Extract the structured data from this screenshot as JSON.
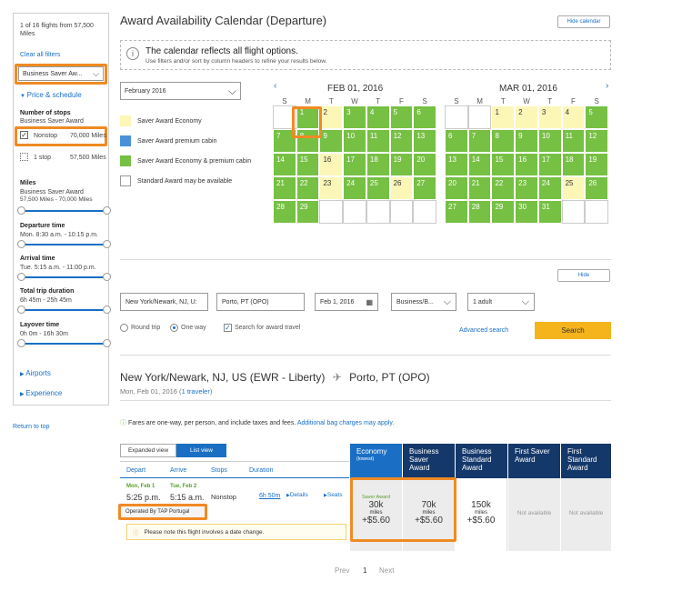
{
  "sidebar": {
    "count_text": "1 of 16 flights from 57,500 Miles",
    "clear": "Clear all filters",
    "fare_select": "Business Saver Aw...",
    "price_schedule": "Price & schedule",
    "stops_label": "Number of stops",
    "stops_sub": "Business Saver Award",
    "nonstop": "Nonstop",
    "nonstop_miles": "70,000 Miles",
    "one_stop": "1 stop",
    "one_stop_miles": "57,500 Miles",
    "miles_label": "Miles",
    "miles_sub": "Business Saver Award",
    "miles_range": "57,500 Miles - 70,000 Miles",
    "dep_label": "Departure time",
    "dep_range": "Mon. 8:30 a.m. - 10:15 p.m.",
    "arr_label": "Arrival time",
    "arr_range": "Tue. 5:15 a.m. - 11:00 p.m.",
    "dur_label": "Total trip duration",
    "dur_range": "6h 45m - 25h 45m",
    "lay_label": "Layover time",
    "lay_range": "0h 0m - 16h 30m",
    "airports": "Airports",
    "experience": "Experience"
  },
  "return_top": "Return to top",
  "calendar": {
    "title": "Award Availability Calendar (Departure)",
    "hide": "Hide calendar",
    "info_title": "The calendar reflects all flight options.",
    "info_sub": "Use filters and/or sort by column headers to refine your results below.",
    "month_select": "February 2016",
    "legend": [
      "Saver Award Economy",
      "Saver Award premium cabin",
      "Saver Award Economy & premium cabin",
      "Standard Award may be available"
    ],
    "legend_colors": [
      "#fdf7b7",
      "#4a90d9",
      "#76c043",
      "#ffffff"
    ],
    "days": [
      "S",
      "M",
      "T",
      "W",
      "T",
      "F",
      "S"
    ],
    "feb": {
      "title": "FEB 01, 2016",
      "weeks": [
        [
          [
            "",
            "e"
          ],
          [
            "1",
            "g"
          ],
          [
            "2",
            "y"
          ],
          [
            "3",
            "g"
          ],
          [
            "4",
            "g"
          ],
          [
            "5",
            "g"
          ],
          [
            "6",
            "g"
          ]
        ],
        [
          [
            "7",
            "g"
          ],
          [
            "8",
            "g"
          ],
          [
            "9",
            "g"
          ],
          [
            "10",
            "g"
          ],
          [
            "11",
            "g"
          ],
          [
            "12",
            "g"
          ],
          [
            "13",
            "g"
          ]
        ],
        [
          [
            "14",
            "g"
          ],
          [
            "15",
            "g"
          ],
          [
            "16",
            "y"
          ],
          [
            "17",
            "g"
          ],
          [
            "18",
            "g"
          ],
          [
            "19",
            "g"
          ],
          [
            "20",
            "g"
          ]
        ],
        [
          [
            "21",
            "g"
          ],
          [
            "22",
            "g"
          ],
          [
            "23",
            "y"
          ],
          [
            "24",
            "g"
          ],
          [
            "25",
            "g"
          ],
          [
            "26",
            "y"
          ],
          [
            "27",
            "g"
          ]
        ],
        [
          [
            "28",
            "g"
          ],
          [
            "29",
            "g"
          ],
          [
            "",
            "e"
          ],
          [
            "",
            "e"
          ],
          [
            "",
            "e"
          ],
          [
            "",
            "e"
          ],
          [
            "",
            "e"
          ]
        ]
      ]
    },
    "mar": {
      "title": "MAR 01, 2016",
      "weeks": [
        [
          [
            "",
            "e"
          ],
          [
            "",
            "e"
          ],
          [
            "1",
            "y"
          ],
          [
            "2",
            "y"
          ],
          [
            "3",
            "y"
          ],
          [
            "4",
            "y"
          ],
          [
            "5",
            "g"
          ]
        ],
        [
          [
            "6",
            "g"
          ],
          [
            "7",
            "g"
          ],
          [
            "8",
            "g"
          ],
          [
            "9",
            "g"
          ],
          [
            "10",
            "g"
          ],
          [
            "11",
            "g"
          ],
          [
            "12",
            "g"
          ]
        ],
        [
          [
            "13",
            "g"
          ],
          [
            "14",
            "g"
          ],
          [
            "15",
            "g"
          ],
          [
            "16",
            "g"
          ],
          [
            "17",
            "g"
          ],
          [
            "18",
            "g"
          ],
          [
            "19",
            "g"
          ]
        ],
        [
          [
            "20",
            "g"
          ],
          [
            "21",
            "g"
          ],
          [
            "22",
            "g"
          ],
          [
            "23",
            "g"
          ],
          [
            "24",
            "g"
          ],
          [
            "25",
            "y"
          ],
          [
            "26",
            "g"
          ]
        ],
        [
          [
            "27",
            "g"
          ],
          [
            "28",
            "g"
          ],
          [
            "29",
            "g"
          ],
          [
            "30",
            "g"
          ],
          [
            "31",
            "g"
          ],
          [
            "",
            "e"
          ],
          [
            "",
            "e"
          ]
        ]
      ]
    }
  },
  "search": {
    "hide": "Hide",
    "from": "New York/Newark, NJ, U:",
    "to": "Porto, PT (OPO)",
    "date": "Feb 1, 2016",
    "cabin": "Business/B...",
    "pax": "1 adult",
    "round": "Round trip",
    "oneway": "One way",
    "award": "Search for award travel",
    "advanced": "Advanced search",
    "search_btn": "Search"
  },
  "results": {
    "route_from": "New York/Newark, NJ, US (EWR - Liberty)",
    "route_to": "Porto, PT (OPO)",
    "date": "Mon, Feb 01, 2016",
    "travelers": "1 traveler",
    "fare_note": "Fares are one-way, per person, and include taxes and fees.",
    "bag_link": "Additional bag charges may apply.",
    "expanded": "Expanded view",
    "list": "List view",
    "headers": {
      "depart": "Depart",
      "arrive": "Arrive",
      "stops": "Stops",
      "duration": "Duration"
    },
    "flight": {
      "dep_day": "Mon, Feb 1",
      "dep_time": "5:25 p.m.",
      "arr_day": "Tue, Feb 2",
      "arr_time": "5:15 a.m.",
      "stops": "Nonstop",
      "duration": "6h 50m",
      "details": "Details",
      "seats": "Seats",
      "operated": "Operated By TAP Portugal",
      "warning": "Please note this flight involves a date change."
    },
    "cols": [
      {
        "title": "Economy",
        "sub": "(lowest)",
        "price": "30k",
        "miles": "miles",
        "fee": "+$5.60",
        "tag": "Saver Award"
      },
      {
        "title": "Business Saver Award",
        "price": "70k",
        "miles": "miles",
        "fee": "+$5.60"
      },
      {
        "title": "Business Standard Award",
        "price": "150k",
        "miles": "miles",
        "fee": "+$5.60"
      },
      {
        "title": "First Saver Award",
        "na": "Not available"
      },
      {
        "title": "First Standard Award",
        "na": "Not available"
      }
    ],
    "pager": {
      "prev": "Prev",
      "page": "1",
      "next": "Next"
    }
  }
}
